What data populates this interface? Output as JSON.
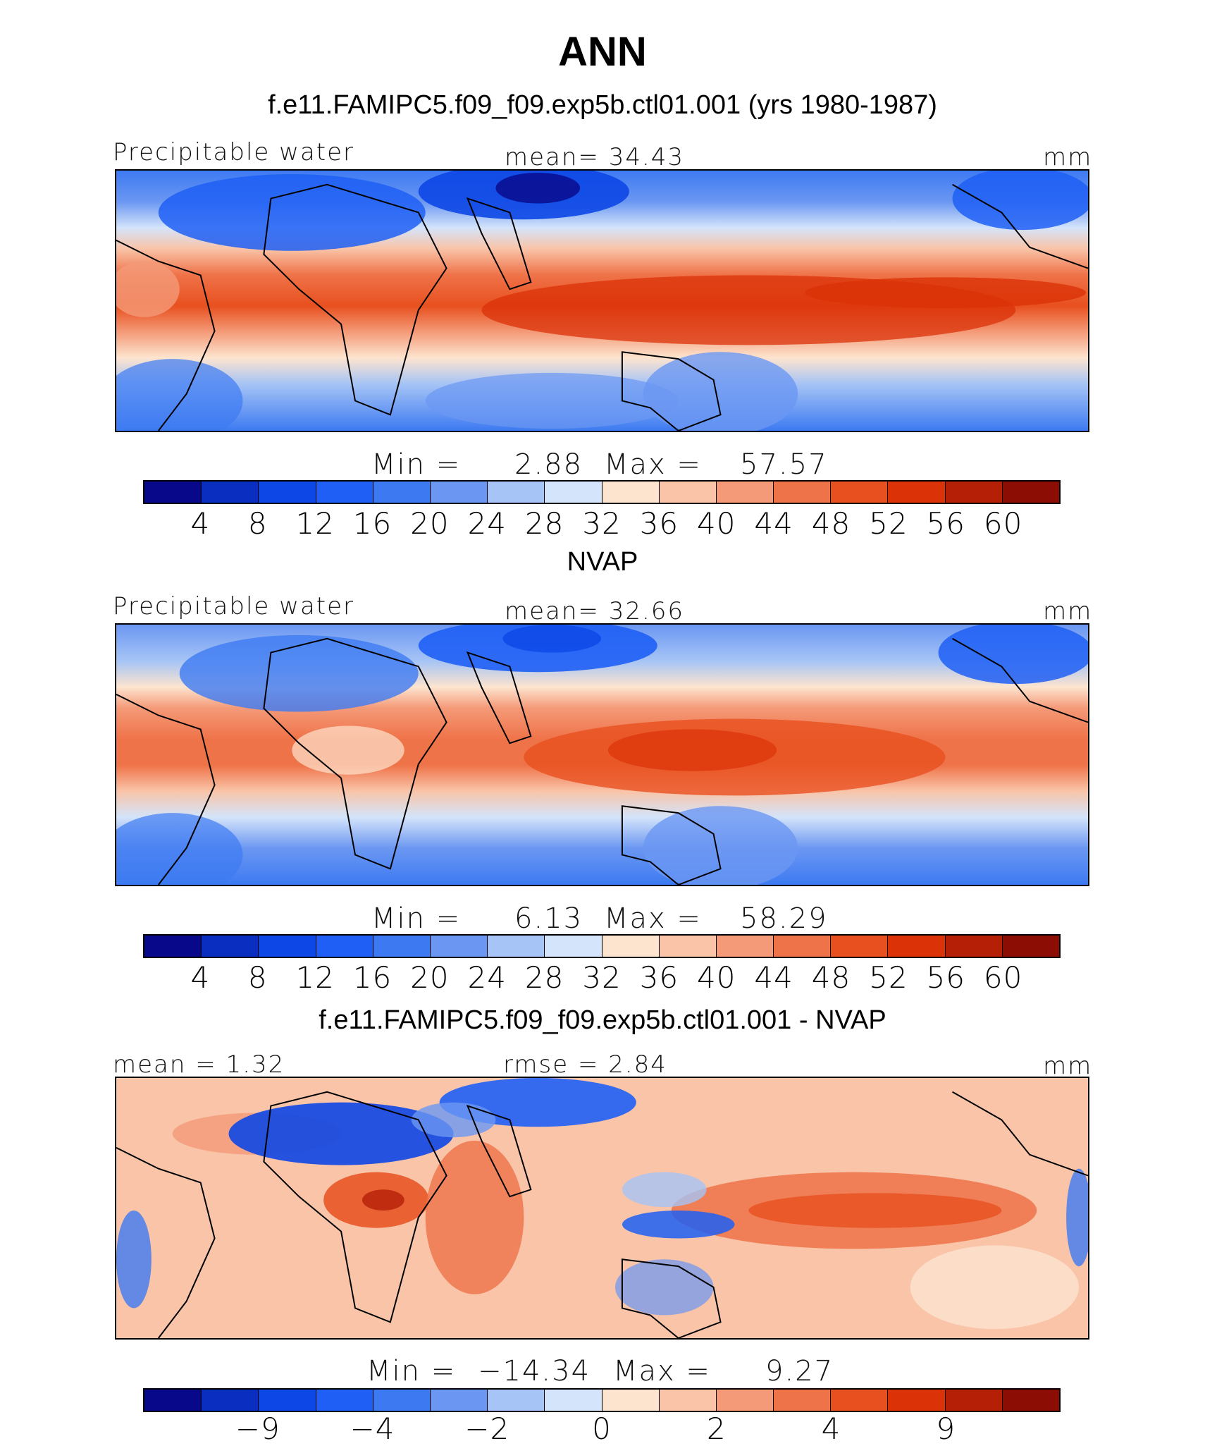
{
  "title": "ANN",
  "panels": [
    {
      "id": "model",
      "heading": "f.e11.FAMIPC5.f09_f09.exp5b.ctl01.001 (yrs 1980-1987)",
      "left_label": "Precipitable water",
      "center_label": "mean=   34.43",
      "units": "mm",
      "min_label": "Min  =",
      "min_value": "2.88",
      "max_label": "Max  =",
      "max_value": "57.57",
      "colorbar_ticks": [
        "4",
        "8",
        "12",
        "16",
        "20",
        "24",
        "28",
        "32",
        "36",
        "40",
        "44",
        "48",
        "52",
        "56",
        "60"
      ]
    },
    {
      "id": "obs",
      "heading": "NVAP",
      "left_label": "Precipitable water",
      "center_label": "mean=   32.66",
      "units": "mm",
      "min_label": "Min  =",
      "min_value": "6.13",
      "max_label": "Max  =",
      "max_value": "58.29",
      "colorbar_ticks": [
        "4",
        "8",
        "12",
        "16",
        "20",
        "24",
        "28",
        "32",
        "36",
        "40",
        "44",
        "48",
        "52",
        "56",
        "60"
      ]
    },
    {
      "id": "diff",
      "heading": "f.e11.FAMIPC5.f09_f09.exp5b.ctl01.001 - NVAP",
      "left_label": "mean  =    1.32",
      "center_label": "rmse  =    2.84",
      "units": "mm",
      "min_label": "Min  =",
      "min_value": "−14.34",
      "max_label": "Max  =",
      "max_value": "9.27",
      "colorbar_ticks": [
        "−9",
        "",
        "−4",
        "",
        "−2",
        "",
        "0",
        "",
        "2",
        "",
        "4",
        "",
        "9"
      ]
    }
  ],
  "colors": {
    "abs_scale": [
      "#08088a",
      "#0a2fc0",
      "#0d47e6",
      "#1f5ff5",
      "#3d7af2",
      "#6b97f2",
      "#a6c4f5",
      "#d4e4fa",
      "#fde4cf",
      "#f9c4a8",
      "#f49a78",
      "#ef7349",
      "#e8501f",
      "#db3208",
      "#b51f06",
      "#8c0d04"
    ],
    "diff_scale": [
      "#08088a",
      "#0a2fc0",
      "#0d47e6",
      "#1f5ff5",
      "#3d7af2",
      "#6b97f2",
      "#a6c4f5",
      "#d4e4fa",
      "#fde4cf",
      "#f9c4a8",
      "#f49a78",
      "#ef7349",
      "#e8501f",
      "#db3208",
      "#b51f06",
      "#8c0d04"
    ]
  }
}
